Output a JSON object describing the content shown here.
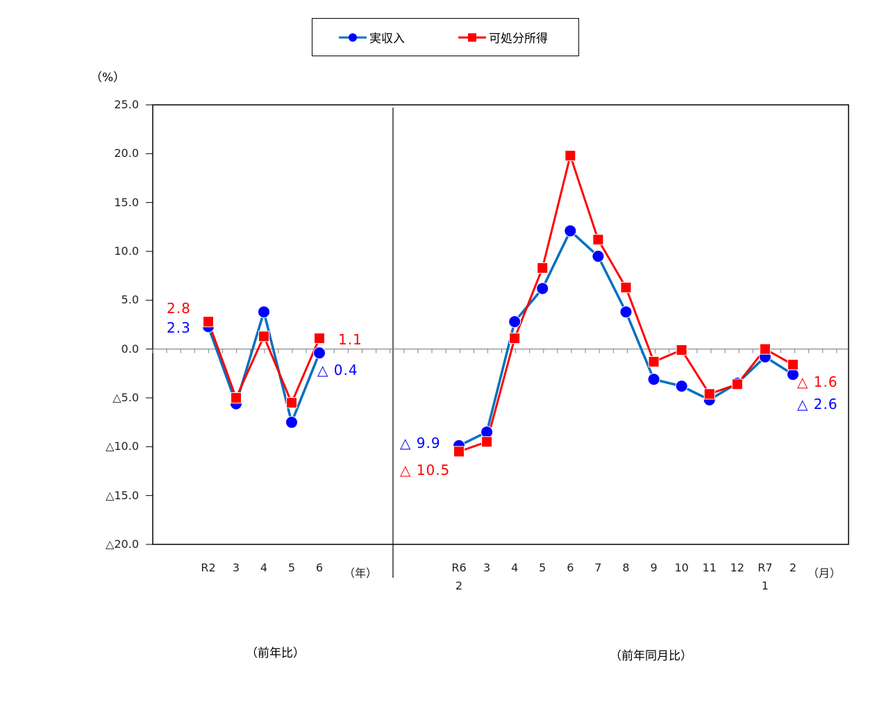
{
  "legend": {
    "series1": "実収入",
    "series2": "可処分所得"
  },
  "axis": {
    "unit": "（%）",
    "y_ticks": [
      "25.0",
      "20.0",
      "15.0",
      "10.0",
      "5.0",
      "0.0",
      "△5.0",
      "△10.0",
      "△15.0",
      "△20.0"
    ],
    "left_unit": "（年）",
    "right_unit": "（月）"
  },
  "sections": {
    "left": "（前年比）",
    "right": "（前年同月比）"
  },
  "annotations": {
    "left_red_first": "2.8",
    "left_blue_first": "2.3",
    "left_red_last": "1.1",
    "left_blue_last": "△ 0.4",
    "right_blue_first": "△ 9.9",
    "right_red_first": "△ 10.5",
    "right_red_last": "△ 1.6",
    "right_blue_last": "△ 2.6"
  },
  "colors": {
    "series1_line": "#0070c0",
    "series1_marker": "#0000ff",
    "series2_line": "#ff0000",
    "series2_marker": "#ff0000"
  },
  "chart_data": [
    {
      "type": "line",
      "title": "前年比",
      "xlabel": "（年）",
      "ylabel": "（%）",
      "ylim": [
        -20,
        25
      ],
      "categories": [
        "R2",
        "3",
        "4",
        "5",
        "6"
      ],
      "series": [
        {
          "name": "実収入",
          "values": [
            2.3,
            -5.6,
            3.8,
            -7.5,
            -0.4
          ]
        },
        {
          "name": "可処分所得",
          "values": [
            2.8,
            -5.0,
            1.3,
            -5.5,
            1.1
          ]
        }
      ]
    },
    {
      "type": "line",
      "title": "前年同月比",
      "xlabel": "（月）",
      "ylabel": "（%）",
      "ylim": [
        -20,
        25
      ],
      "categories": [
        "R6\n2",
        "3",
        "4",
        "5",
        "6",
        "7",
        "8",
        "9",
        "10",
        "11",
        "12",
        "R7\n1",
        "2"
      ],
      "series": [
        {
          "name": "実収入",
          "values": [
            -9.9,
            -8.5,
            2.8,
            6.2,
            12.1,
            9.5,
            3.8,
            -3.1,
            -3.8,
            -5.2,
            -3.5,
            -0.8,
            -2.6
          ]
        },
        {
          "name": "可処分所得",
          "values": [
            -10.5,
            -9.5,
            1.1,
            8.3,
            19.8,
            11.2,
            6.3,
            -1.3,
            -0.1,
            -4.6,
            -3.6,
            0.0,
            -1.6
          ]
        }
      ]
    }
  ]
}
